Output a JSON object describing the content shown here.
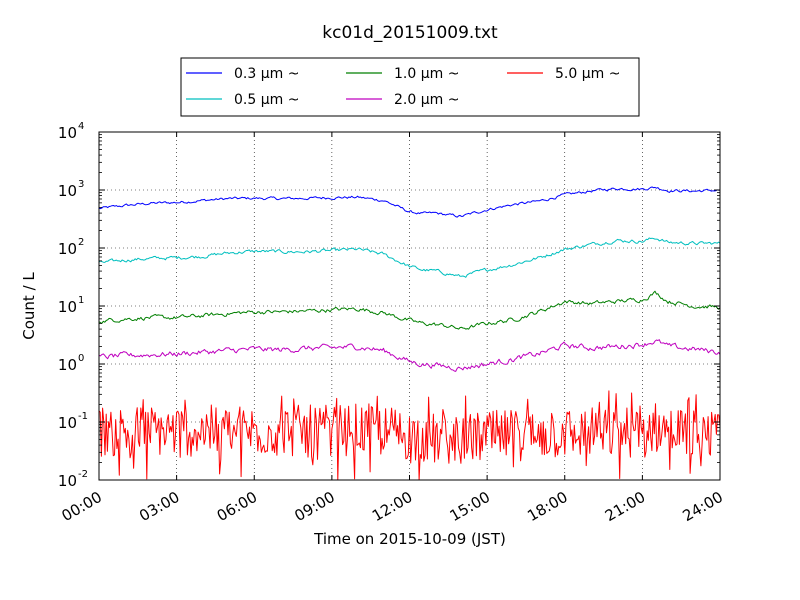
{
  "chart_data": {
    "type": "line",
    "title": "kc01d_20151009.txt",
    "xlabel": "Time on 2015-10-09 (JST)",
    "ylabel": "Count / L",
    "x_unit": "hours (JST)",
    "xlim": [
      0,
      24
    ],
    "ylim": [
      0.01,
      10000
    ],
    "yscale": "log",
    "grid": true,
    "legend_position": "top-center",
    "x_ticks": [
      {
        "value": 0,
        "label": "00:00"
      },
      {
        "value": 3,
        "label": "03:00"
      },
      {
        "value": 6,
        "label": "06:00"
      },
      {
        "value": 9,
        "label": "09:00"
      },
      {
        "value": 12,
        "label": "12:00"
      },
      {
        "value": 15,
        "label": "15:00"
      },
      {
        "value": 18,
        "label": "18:00"
      },
      {
        "value": 21,
        "label": "21:00"
      },
      {
        "value": 24,
        "label": "24:00"
      }
    ],
    "y_ticks": [
      {
        "value": 0.01,
        "base": "10",
        "exp": "-2"
      },
      {
        "value": 0.1,
        "base": "10",
        "exp": "-1"
      },
      {
        "value": 1,
        "base": "10",
        "exp": "0"
      },
      {
        "value": 10,
        "base": "10",
        "exp": "1"
      },
      {
        "value": 100,
        "base": "10",
        "exp": "2"
      },
      {
        "value": 1000,
        "base": "10",
        "exp": "3"
      },
      {
        "value": 10000,
        "base": "10",
        "exp": "4"
      }
    ],
    "series": [
      {
        "name": "0.3 μm ~",
        "color": "#0000ff",
        "noise": 0.04,
        "x": [
          0,
          1,
          2,
          3,
          4,
          5,
          6,
          7,
          8,
          9,
          10,
          11,
          12,
          12.5,
          13,
          13.5,
          14,
          15,
          16,
          17,
          18,
          19,
          20,
          21,
          21.5,
          22,
          23,
          24
        ],
        "y": [
          480,
          540,
          590,
          610,
          660,
          710,
          720,
          710,
          720,
          740,
          750,
          660,
          420,
          390,
          400,
          370,
          350,
          460,
          560,
          640,
          820,
          960,
          1060,
          1040,
          1120,
          980,
          960,
          990
        ]
      },
      {
        "name": "0.5 μm ~",
        "color": "#00bfbf",
        "noise": 0.05,
        "x": [
          0,
          1,
          2,
          3,
          4,
          5,
          6,
          7,
          8,
          9,
          10,
          11,
          12,
          12.5,
          13,
          13.5,
          14,
          15,
          16,
          17,
          18,
          19,
          20,
          21,
          21.5,
          22,
          23,
          24
        ],
        "y": [
          55,
          62,
          66,
          68,
          72,
          82,
          88,
          86,
          86,
          90,
          95,
          78,
          48,
          42,
          40,
          36,
          32,
          42,
          52,
          68,
          95,
          115,
          135,
          130,
          150,
          125,
          120,
          120
        ]
      },
      {
        "name": "1.0 μm ~",
        "color": "#007f00",
        "noise": 0.06,
        "x": [
          0,
          1,
          2,
          3,
          4,
          5,
          6,
          7,
          8,
          9,
          10,
          11,
          12,
          12.5,
          13,
          13.5,
          14,
          15,
          16,
          17,
          18,
          19,
          20,
          21,
          21.5,
          22,
          23,
          24
        ],
        "y": [
          5.5,
          6,
          6.3,
          6.3,
          6.8,
          7.4,
          7.9,
          7.9,
          8.2,
          8.6,
          9,
          7.6,
          5.6,
          5,
          4.8,
          4.5,
          4,
          5,
          5.8,
          8,
          12,
          11,
          12,
          13,
          17,
          12,
          10,
          9.5
        ]
      },
      {
        "name": "2.0 μm ~",
        "color": "#bf00bf",
        "noise": 0.08,
        "x": [
          0,
          1,
          2,
          3,
          4,
          5,
          6,
          7,
          8,
          9,
          10,
          11,
          12,
          12.5,
          13,
          13.5,
          14,
          15,
          16,
          17,
          18,
          19,
          20,
          21,
          21.5,
          22,
          23,
          24
        ],
        "y": [
          1.3,
          1.4,
          1.45,
          1.5,
          1.6,
          1.7,
          1.8,
          1.75,
          1.85,
          1.9,
          2,
          1.7,
          1.1,
          1,
          0.95,
          0.9,
          0.85,
          1,
          1.2,
          1.5,
          2.1,
          1.9,
          2,
          2.2,
          2.5,
          2,
          1.8,
          1.6
        ]
      },
      {
        "name": "5.0 μm ~",
        "color": "#ff0000",
        "noise": 0.5,
        "spiky": true,
        "x": [
          0,
          1,
          2,
          3,
          4,
          5,
          6,
          7,
          8,
          9,
          10,
          11,
          12,
          12.5,
          13,
          13.5,
          14,
          15,
          16,
          17,
          18,
          19,
          20,
          21,
          21.5,
          22,
          23,
          24
        ],
        "y": [
          0.07,
          0.07,
          0.07,
          0.07,
          0.07,
          0.07,
          0.07,
          0.07,
          0.07,
          0.07,
          0.075,
          0.07,
          0.06,
          0.055,
          0.05,
          0.05,
          0.05,
          0.055,
          0.06,
          0.06,
          0.065,
          0.065,
          0.065,
          0.07,
          0.08,
          0.07,
          0.06,
          0.05
        ]
      }
    ]
  }
}
